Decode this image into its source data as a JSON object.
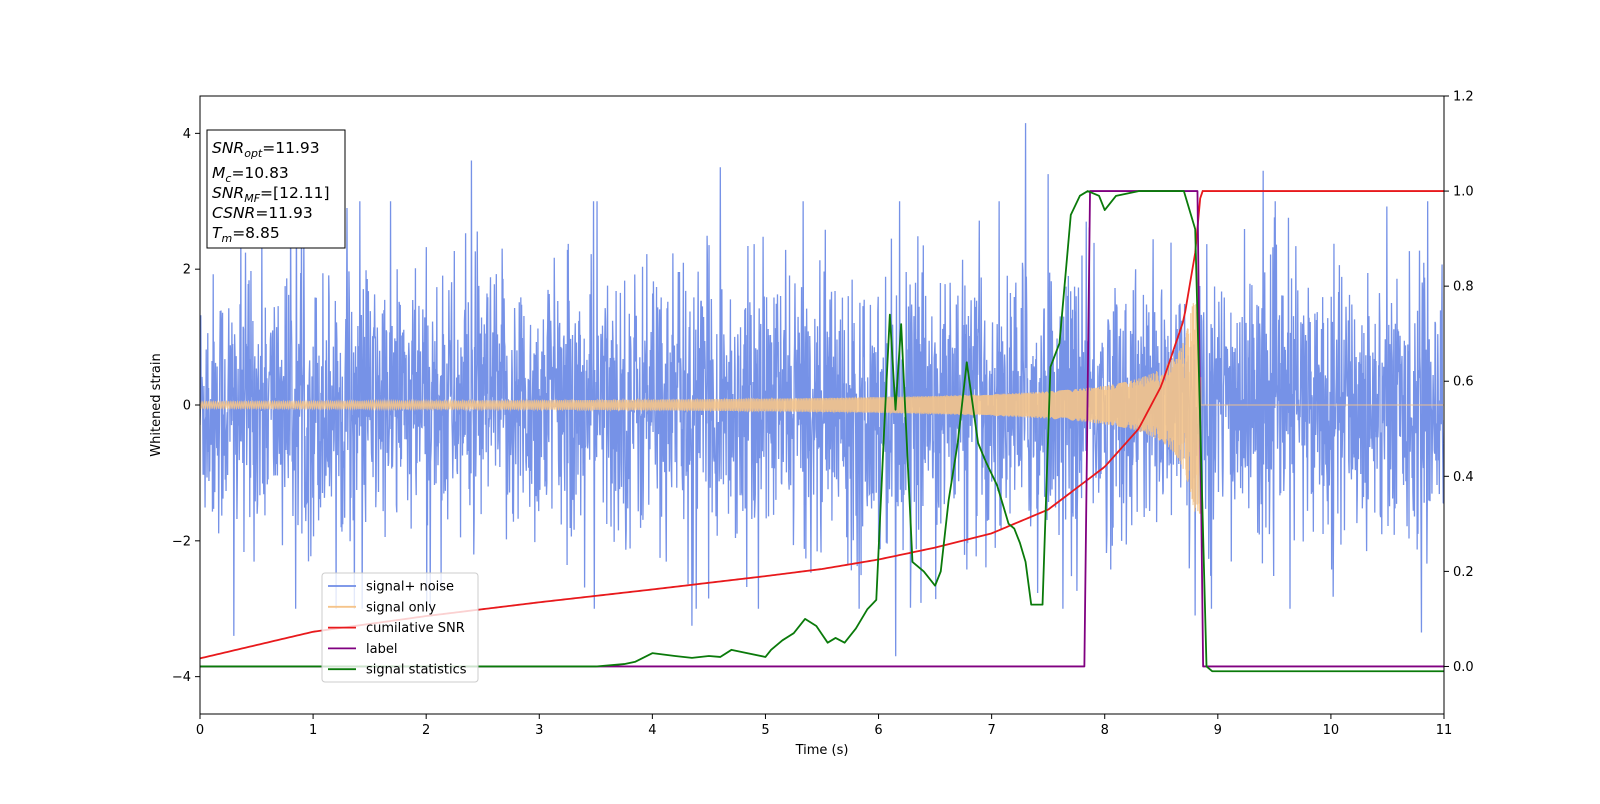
{
  "chart_data": {
    "type": "line",
    "xlabel": "Time (s)",
    "ylabel": "Whitened strain",
    "xlim": [
      0,
      11
    ],
    "ylim_left": [
      -4.55,
      4.55
    ],
    "ylim_right": [
      -0.1,
      1.2
    ],
    "xticks": [
      "0",
      "1",
      "2",
      "3",
      "4",
      "5",
      "6",
      "7",
      "8",
      "9",
      "10",
      "11"
    ],
    "yticks_left": [
      "−4",
      "−2",
      "0",
      "2",
      "4"
    ],
    "yticks_right": [
      "0.0",
      "0.2",
      "0.4",
      "0.6",
      "0.8",
      "1.0",
      "1.2"
    ],
    "legend_position": "lower-left",
    "legend": [
      {
        "label": "signal+ noise",
        "color": "#6f8ce6"
      },
      {
        "label": "signal only",
        "color": "#f5c48a"
      },
      {
        "label": "cumilative SNR",
        "color": "#e8191c"
      },
      {
        "label": "label",
        "color": "#800080"
      },
      {
        "label": "signal statistics",
        "color": "#0a7a0a"
      }
    ],
    "annotation": {
      "lines": [
        {
          "name": "SNR",
          "sub": "opt",
          "value": "=11.93"
        },
        {
          "name": "M",
          "sub": "c",
          "value": "=10.83"
        },
        {
          "name": "SNR",
          "sub": "MF",
          "value": "=[12.11]"
        },
        {
          "name": "CSNR",
          "sub": "",
          "value": "=11.93"
        },
        {
          "name": "T",
          "sub": "m",
          "value": "=8.85"
        }
      ]
    },
    "series": [
      {
        "name": "signal+ noise",
        "axis": "left",
        "color": "#6f8ce6",
        "description": "noise band approx ±2.5 with spikes",
        "envelope_typical": 2.3,
        "spikes": [
          [
            0.3,
            -3.4
          ],
          [
            1.3,
            2.9
          ],
          [
            2.4,
            3.6
          ],
          [
            4.6,
            3.5
          ],
          [
            4.35,
            -3.25
          ],
          [
            6.15,
            -3.7
          ],
          [
            7.3,
            4.15
          ],
          [
            7.5,
            3.4
          ],
          [
            8.8,
            -3.1
          ],
          [
            9.4,
            3.45
          ],
          [
            10.8,
            -3.35
          ]
        ]
      },
      {
        "name": "signal only",
        "axis": "left",
        "color": "#f5c48a",
        "chirp_merger_time": 8.85,
        "amplitude_early": 0.05,
        "amplitude_at_merger": 1.6
      },
      {
        "name": "cumilative SNR",
        "axis": "right",
        "color": "#e8191c",
        "x": [
          0,
          1,
          2,
          3,
          4,
          5,
          5.5,
          6,
          6.5,
          7,
          7.5,
          8,
          8.3,
          8.5,
          8.7,
          8.8,
          8.85,
          11
        ],
        "y": [
          0.017,
          0.073,
          0.106,
          0.135,
          0.162,
          0.19,
          0.205,
          0.225,
          0.25,
          0.28,
          0.33,
          0.42,
          0.5,
          0.59,
          0.73,
          0.87,
          1.0,
          1.0
        ]
      },
      {
        "name": "label",
        "axis": "right",
        "color": "#800080",
        "x": [
          0,
          7.82,
          7.87,
          8.82,
          8.87,
          11
        ],
        "y": [
          0.0,
          0.0,
          1.0,
          1.0,
          0.0,
          0.0
        ]
      },
      {
        "name": "signal statistics",
        "axis": "right",
        "color": "#0a7a0a",
        "x": [
          0,
          1,
          2,
          3,
          3.5,
          3.75,
          3.85,
          4.0,
          4.2,
          4.35,
          4.5,
          4.6,
          4.7,
          4.8,
          5.0,
          5.05,
          5.15,
          5.25,
          5.35,
          5.45,
          5.55,
          5.62,
          5.7,
          5.8,
          5.9,
          5.98,
          6.05,
          6.1,
          6.15,
          6.2,
          6.25,
          6.3,
          6.4,
          6.5,
          6.55,
          6.62,
          6.7,
          6.78,
          6.88,
          6.95,
          7.05,
          7.15,
          7.2,
          7.25,
          7.3,
          7.35,
          7.45,
          7.52,
          7.6,
          7.7,
          7.78,
          7.85,
          7.95,
          8.0,
          8.1,
          8.3,
          8.5,
          8.7,
          8.8,
          8.9,
          8.95,
          11
        ],
        "y": [
          0.0,
          0.0,
          0.0,
          0.0,
          0.0,
          0.005,
          0.01,
          0.028,
          0.022,
          0.018,
          0.022,
          0.02,
          0.035,
          0.03,
          0.02,
          0.035,
          0.055,
          0.07,
          0.1,
          0.085,
          0.05,
          0.06,
          0.05,
          0.08,
          0.12,
          0.14,
          0.5,
          0.74,
          0.54,
          0.72,
          0.47,
          0.22,
          0.2,
          0.17,
          0.2,
          0.35,
          0.47,
          0.64,
          0.47,
          0.43,
          0.38,
          0.3,
          0.29,
          0.26,
          0.22,
          0.13,
          0.13,
          0.63,
          0.68,
          0.95,
          0.99,
          1.0,
          0.99,
          0.96,
          0.99,
          1.0,
          1.0,
          1.0,
          0.92,
          0.0,
          -0.01,
          -0.01
        ]
      }
    ]
  }
}
